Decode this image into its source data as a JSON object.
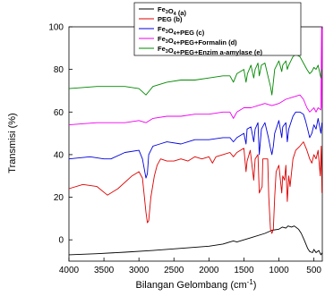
{
  "chart_data": {
    "type": "line",
    "xlabel_main": "Bilangan Gelombang (cm",
    "xlabel_sup": "-1",
    "xlabel_close": ")",
    "ylabel": "Transmisi (%)",
    "xlim": [
      4000,
      380
    ],
    "ylim": [
      -10,
      100
    ],
    "x_reversed": true,
    "xticks": [
      4000,
      3500,
      3000,
      2500,
      2000,
      1500,
      1000,
      500
    ],
    "yticks": [
      0,
      20,
      40,
      60,
      80,
      100
    ],
    "legend_position": "top-right",
    "series": [
      {
        "name": "Fe3O4 (a)",
        "legend_parts": [
          [
            "Fe",
            ""
          ],
          [
            "3",
            "sub"
          ],
          [
            "O",
            ""
          ],
          [
            "4",
            "sub"
          ],
          [
            " (a)",
            ""
          ]
        ],
        "color": "#000000",
        "points": [
          [
            4000,
            -7
          ],
          [
            3600,
            -6.5
          ],
          [
            3200,
            -5.8
          ],
          [
            2800,
            -5
          ],
          [
            2400,
            -4
          ],
          [
            2000,
            -3
          ],
          [
            1800,
            -2
          ],
          [
            1650,
            -0.5
          ],
          [
            1600,
            -1
          ],
          [
            1400,
            1
          ],
          [
            1200,
            3
          ],
          [
            1100,
            4.5
          ],
          [
            1000,
            5
          ],
          [
            950,
            6
          ],
          [
            900,
            5.5
          ],
          [
            870,
            6.5
          ],
          [
            820,
            6
          ],
          [
            780,
            6.5
          ],
          [
            720,
            5
          ],
          [
            680,
            3
          ],
          [
            640,
            0
          ],
          [
            590,
            -4
          ],
          [
            560,
            -5.5
          ],
          [
            520,
            -6
          ],
          [
            500,
            -4.5
          ],
          [
            470,
            -6
          ],
          [
            430,
            -5
          ],
          [
            400,
            -7
          ],
          [
            380,
            -6
          ]
        ]
      },
      {
        "name": "PEG (b)",
        "legend_parts": [
          [
            "PEG (b)",
            ""
          ]
        ],
        "color": "#dd0000",
        "points": [
          [
            4000,
            24
          ],
          [
            3800,
            26
          ],
          [
            3600,
            25
          ],
          [
            3450,
            21
          ],
          [
            3300,
            24
          ],
          [
            3100,
            30
          ],
          [
            3000,
            32
          ],
          [
            2950,
            29
          ],
          [
            2900,
            13
          ],
          [
            2880,
            8
          ],
          [
            2860,
            9
          ],
          [
            2830,
            20
          ],
          [
            2780,
            30
          ],
          [
            2740,
            35
          ],
          [
            2690,
            38
          ],
          [
            2600,
            37
          ],
          [
            2500,
            37
          ],
          [
            2400,
            38
          ],
          [
            2300,
            37
          ],
          [
            2200,
            39
          ],
          [
            2100,
            38
          ],
          [
            2000,
            39
          ],
          [
            1950,
            36
          ],
          [
            1900,
            39
          ],
          [
            1800,
            40
          ],
          [
            1700,
            41
          ],
          [
            1650,
            39
          ],
          [
            1600,
            41
          ],
          [
            1500,
            43
          ],
          [
            1470,
            32
          ],
          [
            1455,
            37
          ],
          [
            1410,
            42
          ],
          [
            1360,
            28
          ],
          [
            1340,
            38
          ],
          [
            1300,
            40
          ],
          [
            1280,
            22
          ],
          [
            1240,
            25
          ],
          [
            1230,
            38
          ],
          [
            1160,
            38
          ],
          [
            1145,
            20
          ],
          [
            1120,
            5
          ],
          [
            1100,
            3
          ],
          [
            1080,
            5
          ],
          [
            1060,
            20
          ],
          [
            1040,
            32
          ],
          [
            1000,
            35
          ],
          [
            960,
            22
          ],
          [
            945,
            30
          ],
          [
            920,
            28
          ],
          [
            900,
            35
          ],
          [
            880,
            18
          ],
          [
            860,
            30
          ],
          [
            840,
            25
          ],
          [
            800,
            38
          ],
          [
            760,
            42
          ],
          [
            700,
            44
          ],
          [
            650,
            46
          ],
          [
            600,
            42
          ],
          [
            560,
            38
          ],
          [
            530,
            36
          ],
          [
            500,
            40
          ],
          [
            470,
            38
          ],
          [
            440,
            42
          ],
          [
            410,
            30
          ],
          [
            395,
            44
          ],
          [
            385,
            22
          ]
        ]
      },
      {
        "name": "Fe3O4+PEG (c)",
        "legend_parts": [
          [
            "Fe",
            ""
          ],
          [
            "3",
            "sub"
          ],
          [
            "O",
            ""
          ],
          [
            "4",
            "sub"
          ],
          [
            "+PEG (c)",
            ""
          ]
        ],
        "color": "#0000dd",
        "points": [
          [
            4000,
            38
          ],
          [
            3700,
            39
          ],
          [
            3500,
            38
          ],
          [
            3400,
            38
          ],
          [
            3200,
            41
          ],
          [
            3000,
            42
          ],
          [
            2950,
            38
          ],
          [
            2900,
            29
          ],
          [
            2880,
            31
          ],
          [
            2860,
            40
          ],
          [
            2800,
            44
          ],
          [
            2700,
            45
          ],
          [
            2600,
            46
          ],
          [
            2400,
            45
          ],
          [
            2300,
            46
          ],
          [
            2200,
            47
          ],
          [
            2000,
            47
          ],
          [
            1800,
            48
          ],
          [
            1700,
            48
          ],
          [
            1650,
            46
          ],
          [
            1600,
            48
          ],
          [
            1500,
            50
          ],
          [
            1470,
            45
          ],
          [
            1455,
            52
          ],
          [
            1400,
            53
          ],
          [
            1360,
            46
          ],
          [
            1340,
            52
          ],
          [
            1300,
            55
          ],
          [
            1280,
            40
          ],
          [
            1250,
            52
          ],
          [
            1200,
            55
          ],
          [
            1150,
            48
          ],
          [
            1120,
            43
          ],
          [
            1100,
            40
          ],
          [
            1080,
            44
          ],
          [
            1060,
            50
          ],
          [
            1000,
            56
          ],
          [
            960,
            48
          ],
          [
            945,
            53
          ],
          [
            900,
            55
          ],
          [
            880,
            46
          ],
          [
            860,
            52
          ],
          [
            800,
            58
          ],
          [
            760,
            60
          ],
          [
            700,
            60
          ],
          [
            650,
            59
          ],
          [
            620,
            56
          ],
          [
            590,
            52
          ],
          [
            560,
            48
          ],
          [
            530,
            50
          ],
          [
            500,
            54
          ],
          [
            470,
            52
          ],
          [
            440,
            57
          ],
          [
            400,
            50
          ],
          [
            385,
            55
          ]
        ]
      },
      {
        "name": "Fe3O4+PEG+Formalin (d)",
        "legend_parts": [
          [
            "Fe",
            ""
          ],
          [
            "3",
            "sub"
          ],
          [
            "O",
            ""
          ],
          [
            "4",
            "sub"
          ],
          [
            "+PEG+Formalin (d)",
            ""
          ]
        ],
        "color": "#ee00ee",
        "points": [
          [
            4000,
            54
          ],
          [
            3600,
            55
          ],
          [
            3200,
            55
          ],
          [
            3000,
            56
          ],
          [
            2900,
            55
          ],
          [
            2800,
            57
          ],
          [
            2600,
            58
          ],
          [
            2400,
            58
          ],
          [
            2200,
            59
          ],
          [
            2000,
            59
          ],
          [
            1800,
            60
          ],
          [
            1700,
            60
          ],
          [
            1650,
            57
          ],
          [
            1600,
            60
          ],
          [
            1500,
            62
          ],
          [
            1400,
            62
          ],
          [
            1300,
            63
          ],
          [
            1200,
            64
          ],
          [
            1100,
            63
          ],
          [
            1000,
            64
          ],
          [
            900,
            66
          ],
          [
            800,
            67
          ],
          [
            700,
            68
          ],
          [
            650,
            66
          ],
          [
            600,
            62
          ],
          [
            560,
            60
          ],
          [
            530,
            61
          ],
          [
            500,
            62
          ],
          [
            470,
            60
          ],
          [
            440,
            62
          ],
          [
            400,
            61
          ],
          [
            390,
            100
          ],
          [
            385,
            62
          ],
          [
            380,
            99
          ]
        ]
      },
      {
        "name": "Fe3O4+PEG+Enzim a-amylase (e)",
        "legend_parts": [
          [
            "Fe",
            ""
          ],
          [
            "3",
            "sub"
          ],
          [
            "O",
            ""
          ],
          [
            "4",
            "sub"
          ],
          [
            "+PEG+Enzim a-amylase (e)",
            ""
          ]
        ],
        "color": "#008800",
        "points": [
          [
            4000,
            71
          ],
          [
            3600,
            72
          ],
          [
            3200,
            72
          ],
          [
            3000,
            71
          ],
          [
            2900,
            68
          ],
          [
            2850,
            70
          ],
          [
            2800,
            72
          ],
          [
            2700,
            73
          ],
          [
            2600,
            74
          ],
          [
            2400,
            75
          ],
          [
            2200,
            75
          ],
          [
            2000,
            76
          ],
          [
            1800,
            77
          ],
          [
            1700,
            77
          ],
          [
            1650,
            74
          ],
          [
            1600,
            78
          ],
          [
            1500,
            80
          ],
          [
            1470,
            74
          ],
          [
            1450,
            78
          ],
          [
            1400,
            82
          ],
          [
            1360,
            76
          ],
          [
            1340,
            80
          ],
          [
            1300,
            83
          ],
          [
            1280,
            77
          ],
          [
            1250,
            82
          ],
          [
            1200,
            83
          ],
          [
            1150,
            76
          ],
          [
            1120,
            72
          ],
          [
            1100,
            68
          ],
          [
            1080,
            74
          ],
          [
            1060,
            80
          ],
          [
            1000,
            84
          ],
          [
            960,
            79
          ],
          [
            945,
            82
          ],
          [
            900,
            84
          ],
          [
            880,
            80
          ],
          [
            860,
            82
          ],
          [
            800,
            86
          ],
          [
            760,
            87
          ],
          [
            700,
            86
          ],
          [
            650,
            83
          ],
          [
            600,
            80
          ],
          [
            560,
            78
          ],
          [
            530,
            79
          ],
          [
            500,
            81
          ],
          [
            470,
            80
          ],
          [
            440,
            82
          ],
          [
            400,
            76
          ],
          [
            385,
            80
          ]
        ]
      }
    ]
  }
}
